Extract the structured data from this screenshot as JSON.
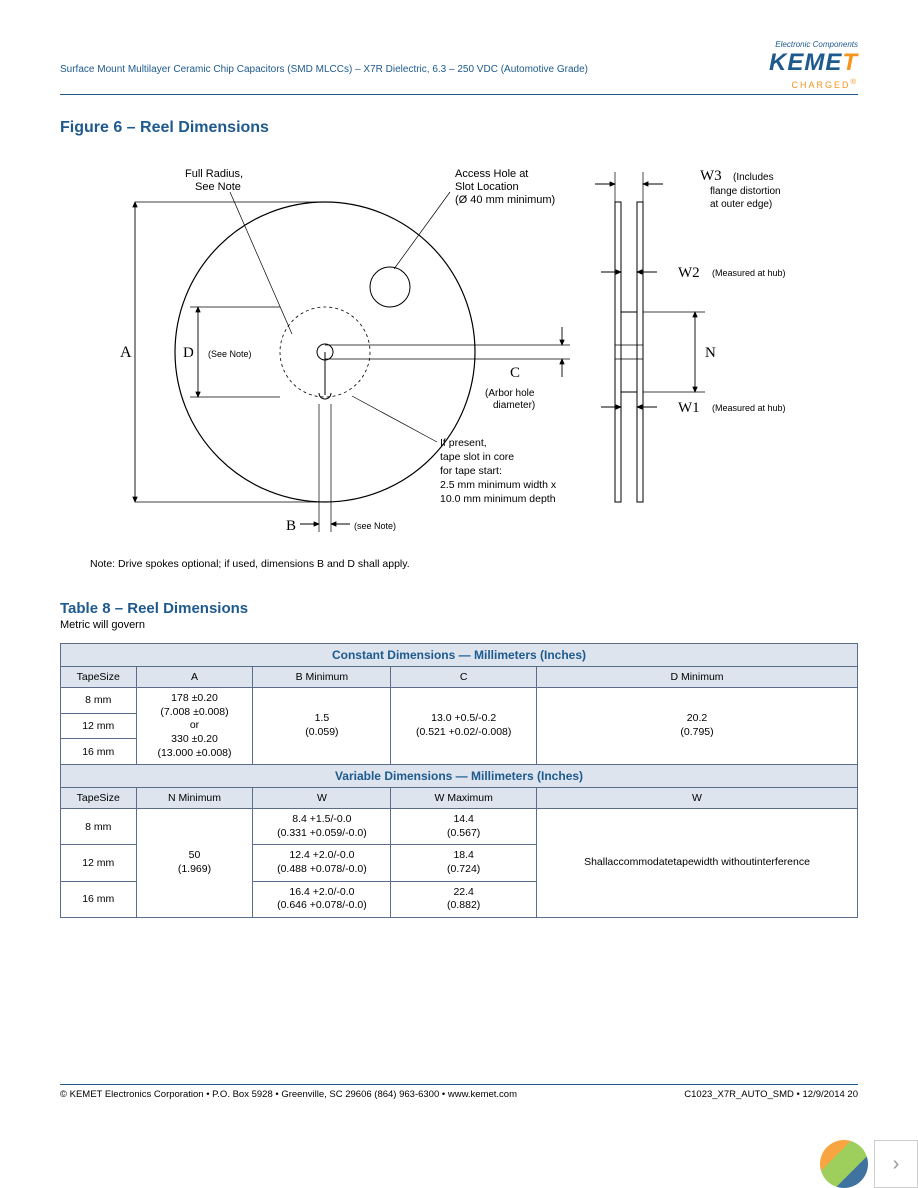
{
  "header": {
    "text": "Surface Mount Multilayer Ceramic Chip Capacitors (SMD MLCCs) – X7R Dielectric, 6.3 – 250 VDC (Automotive Grade)",
    "logo_tag": "Electronic Components",
    "logo_name": "KEME",
    "logo_last": "T",
    "logo_charged": "CHARGED"
  },
  "figure": {
    "title": "Figure 6 – Reel Dimensions",
    "labels": {
      "full_radius": "Full Radius,",
      "see_note1": "See Note",
      "access_hole": "Access Hole at",
      "slot_location": "Slot Location",
      "diameter_min": "(Ø 40 mm minimum)",
      "A": "A",
      "D": "D",
      "D_note": "(See Note)",
      "B": "B",
      "B_note": "(see Note)",
      "C": "C",
      "arbor": "(Arbor hole",
      "arbor2": "diameter)",
      "tape_slot1": "If present,",
      "tape_slot2": "tape slot in core",
      "tape_slot3": "for tape start:",
      "tape_slot4": "2.5 mm minimum width x",
      "tape_slot5": "10.0 mm minimum depth",
      "W3": "W3",
      "W3_note1": "(Includes",
      "W3_note2": "flange distortion",
      "W3_note3": "at outer edge)",
      "W2": "W2",
      "W2_note": "(Measured at hub)",
      "W1": "W1",
      "W1_note": "(Measured at hub)",
      "N": "N"
    },
    "note": "Note:  Drive spokes optional; if used, dimensions B and D shall apply."
  },
  "table": {
    "title": "Table 8 – Reel Dimensions",
    "metric_note": "Metric will govern",
    "constant_header": "Constant Dimensions — Millimeters (Inches)",
    "variable_header": "Variable Dimensions — Millimeters (Inches)",
    "cols_constant": [
      "TapeSize",
      "A",
      "B Minimum",
      "C",
      "D Minimum"
    ],
    "cols_variable": [
      "TapeSize",
      "N Minimum",
      "W",
      "W  Maximum",
      "W"
    ],
    "tape_sizes": [
      "8 mm",
      "12 mm",
      "16 mm"
    ],
    "A": "178 ±0.20\n(7.008 ±0.008)\nor\n330 ±0.20\n(13.000 ±0.008)",
    "B": "1.5\n(0.059)",
    "C": "13.0 +0.5/-0.2\n(0.521 +0.02/-0.008)",
    "D": "20.2\n(0.795)",
    "N": "50\n(1.969)",
    "W1": [
      "8.4 +1.5/-0.0\n(0.331 +0.059/-0.0)",
      "12.4 +2.0/-0.0\n(0.488 +0.078/-0.0)",
      "16.4 +2.0/-0.0\n(0.646 +0.078/-0.0)"
    ],
    "W2": [
      "14.4\n(0.567)",
      "18.4\n(0.724)",
      "22.4\n(0.882)"
    ],
    "W3": "Shallaccommodatetapewidth withoutinterference"
  },
  "footer": {
    "left": "© KEMET Electronics Corporation • P.O. Box 5928 • Greenville, SC 29606 (864) 963-6300 • www.kemet.com",
    "right": "C1023_X7R_AUTO_SMD • 12/9/2014 20"
  }
}
